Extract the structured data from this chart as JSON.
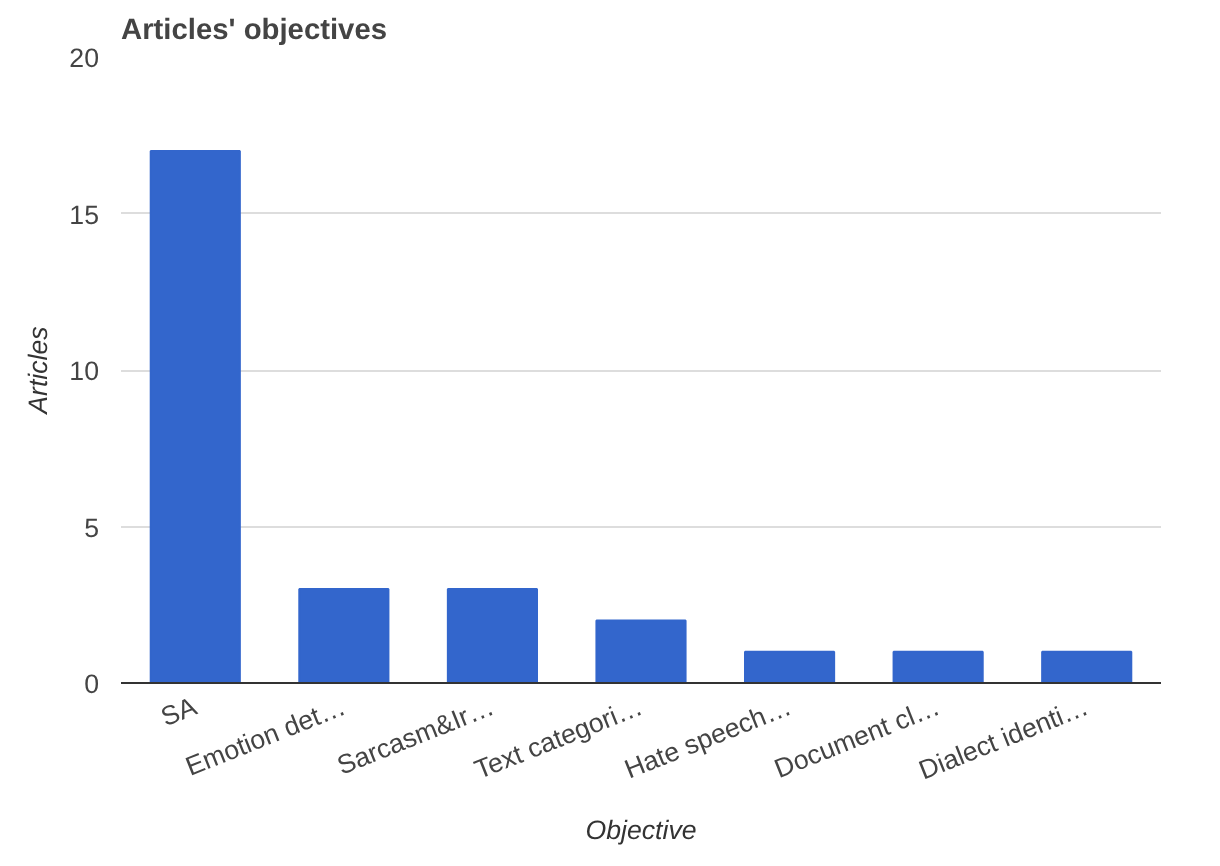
{
  "chart_data": {
    "type": "bar",
    "title": "Articles' objectives",
    "xlabel": "Objective",
    "ylabel": "Articles",
    "categories": [
      "SA",
      "Emotion det…",
      "Sarcasm&Ir…",
      "Text categori…",
      "Hate speech…",
      "Document cl…",
      "Dialect identi…"
    ],
    "values": [
      17,
      3,
      3,
      2,
      1,
      1,
      1
    ],
    "color": "#3366cc",
    "ylim": [
      0,
      20
    ],
    "yticks": [
      0,
      5,
      10,
      15,
      20
    ],
    "grid": "y"
  }
}
